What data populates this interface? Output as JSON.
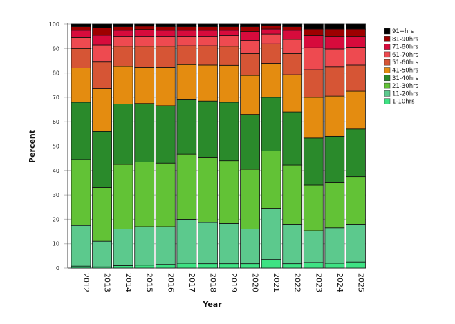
{
  "chart_data": {
    "type": "bar",
    "stacked": true,
    "xlabel": "Year",
    "ylabel": "Percent",
    "ylim": [
      0,
      100
    ],
    "yticks": [
      0,
      10,
      20,
      30,
      40,
      50,
      60,
      70,
      80,
      90,
      100
    ],
    "grid": "horizontal",
    "legend_placement": "right",
    "categories": [
      "2012",
      "2013",
      "2014",
      "2015",
      "2016",
      "2017",
      "2018",
      "2019",
      "2020",
      "2021",
      "2022",
      "2023",
      "2024",
      "2025"
    ],
    "series": [
      {
        "name": "1-10hrs",
        "color": "#3ee283",
        "values": [
          0.8,
          0.5,
          1,
          1.2,
          1.5,
          2,
          1.8,
          1.8,
          1.8,
          3.5,
          1.8,
          2.3,
          2,
          2.5
        ]
      },
      {
        "name": "11-20hrs",
        "color": "#5cc98d",
        "values": [
          16.7,
          10.5,
          15,
          15.8,
          15.5,
          18,
          16.9,
          16.5,
          14.2,
          21,
          16.2,
          13,
          14.5,
          15.5
        ]
      },
      {
        "name": "21-30hrs",
        "color": "#62c236",
        "values": [
          27,
          22,
          26.5,
          26.5,
          26,
          26.7,
          26.8,
          25.7,
          24.5,
          23.5,
          24.2,
          18.7,
          18.5,
          19.5
        ]
      },
      {
        "name": "31-40hrs",
        "color": "#2a8a2b",
        "values": [
          23.5,
          23,
          24.8,
          24,
          23.6,
          22.3,
          23,
          24,
          22.5,
          22,
          21.8,
          19.3,
          19,
          19.5
        ]
      },
      {
        "name": "41-50hrs",
        "color": "#e48c10",
        "values": [
          14,
          17.5,
          15.4,
          14.8,
          15.7,
          14.5,
          14.8,
          15.2,
          16,
          14,
          15.3,
          16.7,
          16.5,
          15.5
        ]
      },
      {
        "name": "51-60hrs",
        "color": "#d65535",
        "values": [
          8,
          11,
          8.3,
          8.7,
          8.7,
          7.7,
          7.9,
          7.8,
          9,
          8,
          8.7,
          11.3,
          12,
          10.8
        ]
      },
      {
        "name": "61-70hrs",
        "color": "#ee4a50",
        "values": [
          4.5,
          7,
          4,
          4,
          4,
          3.8,
          3.8,
          4.3,
          5.3,
          4,
          5.8,
          9,
          7.3,
          7.2
        ]
      },
      {
        "name": "71-80hrs",
        "color": "#d70b3c",
        "values": [
          3,
          4,
          2.5,
          2.8,
          2.5,
          2.5,
          2.5,
          2.2,
          3.7,
          2,
          3.7,
          5,
          5.2,
          4.5
        ]
      },
      {
        "name": "81-90hrs",
        "color": "#9e0000",
        "values": [
          1.5,
          3,
          1.5,
          1.4,
          1.5,
          1.5,
          1.5,
          1.5,
          2,
          1.5,
          1.5,
          2.7,
          3,
          3
        ]
      },
      {
        "name": "91+hrs",
        "color": "#000000",
        "values": [
          1,
          1.5,
          1,
          0.8,
          1,
          1,
          1,
          1,
          1,
          0.5,
          1,
          2,
          2,
          2
        ]
      }
    ]
  }
}
